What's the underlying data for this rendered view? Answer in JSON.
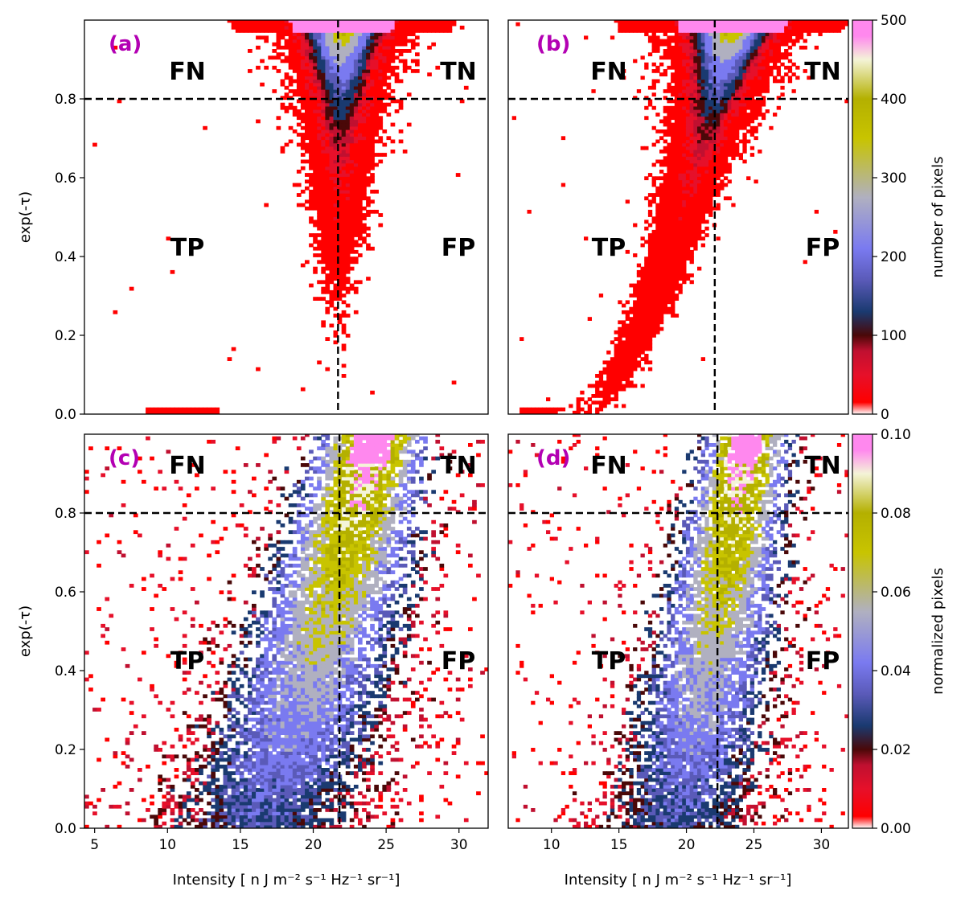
{
  "colors": {
    "colormap": [
      "#ffffff",
      "#ff0000",
      "#e6102a",
      "#c01030",
      "#4a0808",
      "#1a3a70",
      "#5a5ab8",
      "#7a7af0",
      "#b0b0c0",
      "#c8c400",
      "#b4b000",
      "#f4f4d8",
      "#ff88ee"
    ],
    "panel_label": "#b300b3",
    "threshold_line": "#000000"
  },
  "chart_data": [
    {
      "panel": "(a)",
      "type": "heatmap",
      "xlabel": "",
      "ylabel": "exp(-τ)",
      "xlim": [
        4.3,
        32
      ],
      "ylim": [
        0,
        1.0
      ],
      "xticks": [],
      "yticks": [
        "0.0",
        "0.2",
        "0.4",
        "0.6",
        "0.8"
      ],
      "threshold_x": 21.7,
      "threshold_y": 0.8,
      "quadrants": {
        "top_left": "FN",
        "top_right": "TN",
        "bottom_left": "TP",
        "bottom_right": "FP"
      },
      "distribution": {
        "ridge_x_at_top": 22.0,
        "ridge_x_at_mid": 21.5,
        "width_at_top": 4.5,
        "scatter": 0.25,
        "count_scale": 500,
        "low_tail_y": 0.01,
        "low_tail_x": [
          8.5,
          13.5
        ]
      }
    },
    {
      "panel": "(b)",
      "type": "heatmap",
      "xlabel": "",
      "ylabel": "",
      "xlim": [
        6.8,
        32
      ],
      "ylim": [
        0,
        1.0
      ],
      "xticks": [],
      "yticks": [],
      "threshold_x": 22.1,
      "threshold_y": 0.8,
      "quadrants": {
        "top_left": "FN",
        "top_right": "TN",
        "bottom_left": "TP",
        "bottom_right": "FP"
      },
      "distribution": {
        "ridge_x_at_top": 23.5,
        "ridge_x_at_bottom": 12.0,
        "width_at_top": 5.0,
        "scatter": 0.3,
        "count_scale": 500,
        "low_tail_y": 0.01,
        "low_tail_x": [
          7.5,
          14.0
        ]
      },
      "colorbar": {
        "label": "number of pixels",
        "ticks": [
          "0",
          "100",
          "200",
          "300",
          "400",
          "500"
        ],
        "range": [
          0,
          500
        ]
      }
    },
    {
      "panel": "(c)",
      "type": "heatmap",
      "xlabel": "Intensity [ n J m⁻² s⁻¹ Hz⁻¹ sr⁻¹]",
      "ylabel": "exp(-τ)",
      "xlim": [
        4.3,
        32
      ],
      "ylim": [
        0,
        1.0
      ],
      "xticks": [
        "5",
        "10",
        "15",
        "20",
        "25",
        "30"
      ],
      "yticks": [
        "0.0",
        "0.2",
        "0.4",
        "0.6",
        "0.8"
      ],
      "threshold_x": 21.8,
      "threshold_y": 0.8,
      "quadrants": {
        "top_left": "FN",
        "top_right": "TN",
        "bottom_left": "TP",
        "bottom_right": "FP"
      },
      "distribution": {
        "ridge_x_at_top": 24.2,
        "ridge_x_at_bottom": 16.0,
        "width": 6.5,
        "scatter": 0.9,
        "count_scale": 0.1
      }
    },
    {
      "panel": "(d)",
      "type": "heatmap",
      "xlabel": "Intensity [ n J m⁻² s⁻¹ Hz⁻¹ sr⁻¹]",
      "ylabel": "",
      "xlim": [
        6.8,
        32
      ],
      "ylim": [
        0,
        1.0
      ],
      "xticks": [
        "10",
        "15",
        "20",
        "25",
        "30"
      ],
      "yticks": [],
      "threshold_x": 22.3,
      "threshold_y": 0.8,
      "quadrants": {
        "top_left": "FN",
        "top_right": "TN",
        "bottom_left": "TP",
        "bottom_right": "FP"
      },
      "distribution": {
        "ridge_x_at_top": 24.5,
        "ridge_x_at_bottom": 19.0,
        "width": 5.5,
        "scatter": 0.7,
        "count_scale": 0.1
      },
      "colorbar": {
        "label": "normalized pixels",
        "ticks": [
          "0.00",
          "0.02",
          "0.04",
          "0.06",
          "0.08",
          "0.10"
        ],
        "range": [
          0,
          0.1
        ]
      }
    }
  ]
}
